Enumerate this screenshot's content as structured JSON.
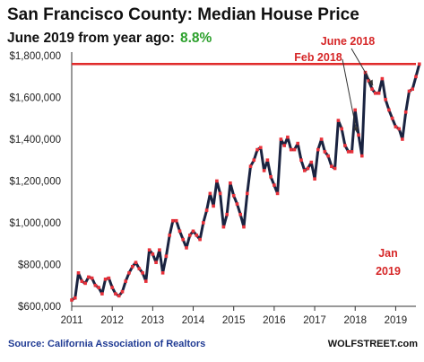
{
  "title": "San Francisco County: Median House Price",
  "subtitle": {
    "text": "June 2019 from year ago:",
    "value": "8.8%",
    "value_color": "#2ca02c"
  },
  "source": "Source: California Association of Realtors",
  "brand": "WOLFSTREET.com",
  "colors": {
    "line": "#1a2340",
    "marker": "#e8313a",
    "reference_line": "#e02b2b",
    "annotation": "#d62728"
  },
  "annotations": {
    "june_2018": "June 2018",
    "feb_2018": "Feb 2018",
    "jan_2019_line1": "Jan",
    "jan_2019_line2": "2019"
  },
  "chart_data": {
    "type": "line",
    "title": "San Francisco County: Median House Price",
    "xlabel": "",
    "ylabel": "",
    "x_start": "2011-01",
    "frequency": "monthly",
    "xlim": [
      2011.0,
      2019.5
    ],
    "ylim": [
      600000,
      1800000
    ],
    "y_ticks": [
      {
        "value": 600000,
        "label": "$600,000"
      },
      {
        "value": 800000,
        "label": "$800,000"
      },
      {
        "value": 1000000,
        "label": "$1,000,000"
      },
      {
        "value": 1200000,
        "label": "$1,200,000"
      },
      {
        "value": 1400000,
        "label": "$1,400,000"
      },
      {
        "value": 1600000,
        "label": "$1,600,000"
      },
      {
        "value": 1800000,
        "label": "$1,800,000"
      }
    ],
    "x_ticks": [
      {
        "value": 2011,
        "label": "2011"
      },
      {
        "value": 2012,
        "label": "2012"
      },
      {
        "value": 2013,
        "label": "2013"
      },
      {
        "value": 2014,
        "label": "2014"
      },
      {
        "value": 2015,
        "label": "2015"
      },
      {
        "value": 2016,
        "label": "2016"
      },
      {
        "value": 2017,
        "label": "2017"
      },
      {
        "value": 2018,
        "label": "2018"
      },
      {
        "value": 2019,
        "label": "2019"
      }
    ],
    "reference_line": 1760000,
    "grid": false,
    "legend": "none",
    "series": [
      {
        "values": [
          630000,
          640000,
          760000,
          720000,
          710000,
          740000,
          735000,
          700000,
          690000,
          660000,
          730000,
          735000,
          690000,
          660000,
          650000,
          670000,
          720000,
          760000,
          790000,
          810000,
          780000,
          760000,
          720000,
          870000,
          850000,
          810000,
          870000,
          760000,
          840000,
          940000,
          1010000,
          1010000,
          960000,
          920000,
          880000,
          940000,
          960000,
          940000,
          920000,
          1000000,
          1060000,
          1140000,
          1080000,
          1200000,
          1140000,
          980000,
          1040000,
          1190000,
          1130000,
          1090000,
          1040000,
          980000,
          1140000,
          1270000,
          1300000,
          1350000,
          1360000,
          1250000,
          1300000,
          1220000,
          1180000,
          1140000,
          1400000,
          1370000,
          1410000,
          1350000,
          1350000,
          1380000,
          1300000,
          1250000,
          1260000,
          1290000,
          1210000,
          1350000,
          1400000,
          1340000,
          1320000,
          1270000,
          1260000,
          1490000,
          1450000,
          1370000,
          1340000,
          1340000,
          1540000,
          1420000,
          1320000,
          1720000,
          1680000,
          1640000,
          1620000,
          1620000,
          1690000,
          1590000,
          1540000,
          1500000,
          1460000,
          1450000,
          1400000,
          1530000,
          1630000,
          1640000,
          1700000,
          1760000
        ]
      }
    ]
  }
}
